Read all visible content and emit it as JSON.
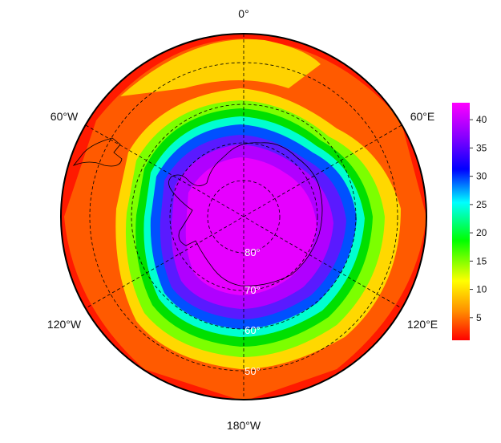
{
  "map": {
    "projection": "south polar stereographic",
    "longitude_labels": {
      "top": "0°",
      "upper_left": "60°W",
      "upper_right": "60°E",
      "lower_left": "120°W",
      "lower_right": "120°E",
      "bottom": "180°W"
    },
    "latitude_labels": [
      "80°",
      "70°",
      "60°",
      "50°"
    ],
    "field": {
      "description": "concentric bands, highest near the pole decreasing outward",
      "bands": [
        {
          "min_lat": 70,
          "value": 42
        },
        {
          "min_lat": 62,
          "value": 36
        },
        {
          "min_lat": 58,
          "value": 28
        },
        {
          "min_lat": 55,
          "value": 20
        },
        {
          "min_lat": 52,
          "value": 12
        },
        {
          "min_lat": 48,
          "value": 6
        },
        {
          "min_lat": 40,
          "value": 2
        }
      ]
    }
  },
  "colorbar": {
    "ticks": [
      "40",
      "35",
      "30",
      "25",
      "20",
      "15",
      "10",
      "5"
    ],
    "min": 1,
    "max": 43,
    "colors": [
      "#ff0000",
      "#ff8c00",
      "#ffff00",
      "#00ff00",
      "#00ffff",
      "#0000ff",
      "#8a00ff",
      "#ff00ff"
    ]
  }
}
